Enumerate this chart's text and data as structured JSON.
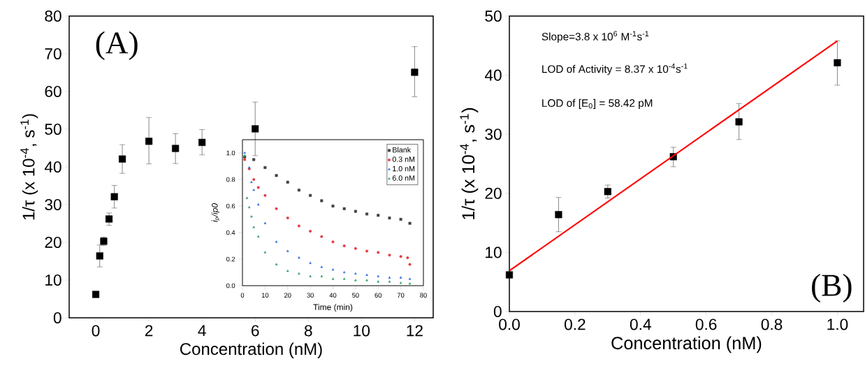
{
  "chart_data": [
    {
      "type": "scatter",
      "xlabel": "Concentration (nM)",
      "ylabel": "1/τ (x 10$^{-4}$, s$^{-1}$)",
      "xlim": [
        -1,
        12.7
      ],
      "ylim": [
        0,
        80
      ],
      "xticks": [
        0,
        2,
        4,
        6,
        8,
        10,
        12
      ],
      "yticks": [
        0,
        10,
        20,
        30,
        40,
        50,
        60,
        70,
        80
      ],
      "marker": "square",
      "annotations": [
        "(A)"
      ],
      "series": [
        {
          "color": "#000000",
          "x": [
            0,
            0.15,
            0.3,
            0.5,
            0.7,
            1,
            2,
            3,
            4,
            6,
            12
          ],
          "values": [
            6.2,
            16.4,
            20.3,
            26.2,
            32.1,
            42.1,
            46.8,
            44.9,
            46.5,
            50.1,
            65.1
          ],
          "errors": [
            null,
            [
              13.5,
              19.3
            ],
            [
              19.2,
              21.4
            ],
            [
              24.5,
              27.8
            ],
            [
              29.1,
              35.1
            ],
            [
              38.3,
              45.9
            ],
            [
              40.8,
              53.1
            ],
            [
              40.9,
              48.8
            ],
            [
              43.2,
              49.9
            ],
            [
              43.0,
              57.2
            ],
            [
              58.6,
              71.9
            ]
          ]
        }
      ]
    },
    {
      "type": "scatter",
      "xlabel": "Time (min)",
      "ylabel": "i$_{p}$/ip0",
      "xlim": [
        0,
        80
      ],
      "ylim": [
        0,
        1.1
      ],
      "xticks": [
        0,
        10,
        20,
        30,
        40,
        50,
        60,
        70,
        80
      ],
      "yticks": [
        {
          "value": 0,
          "label": "0.0"
        },
        {
          "value": 0.2,
          "label": "0.2"
        },
        {
          "value": 0.4,
          "label": "0.4"
        },
        {
          "value": 0.6,
          "label": "0.6"
        },
        {
          "value": 0.8,
          "label": "0.8"
        },
        {
          "value": 1.0,
          "label": "1.0"
        }
      ],
      "legend": "top right",
      "series": [
        {
          "name": "Blank",
          "color": "#404040",
          "marker": "square",
          "x": [
            1,
            5,
            10,
            15,
            20,
            25,
            30,
            35,
            40,
            45,
            50,
            55,
            60,
            65,
            70,
            74
          ],
          "values": [
            0.97,
            0.95,
            0.89,
            0.83,
            0.78,
            0.72,
            0.68,
            0.64,
            0.6,
            0.58,
            0.56,
            0.54,
            0.53,
            0.51,
            0.5,
            0.47
          ]
        },
        {
          "name": "0.3 nM",
          "color": "#e8383d",
          "marker": "circle",
          "x": [
            1,
            3,
            5,
            7,
            10,
            15,
            20,
            25,
            30,
            35,
            40,
            45,
            50,
            55,
            60,
            65,
            70,
            73,
            74
          ],
          "values": [
            0.95,
            0.88,
            0.8,
            0.74,
            0.68,
            0.58,
            0.51,
            0.45,
            0.41,
            0.37,
            0.33,
            0.3,
            0.28,
            0.26,
            0.25,
            0.23,
            0.22,
            0.21,
            0.16
          ]
        },
        {
          "name": "1.0 nM",
          "color": "#2a6ee0",
          "marker": "triangle",
          "x": [
            1,
            3,
            4,
            5,
            7,
            10,
            15,
            20,
            25,
            30,
            35,
            40,
            45,
            50,
            55,
            60,
            65,
            70,
            74
          ],
          "values": [
            1.0,
            0.89,
            0.78,
            0.72,
            0.61,
            0.47,
            0.33,
            0.26,
            0.21,
            0.17,
            0.14,
            0.12,
            0.1,
            0.09,
            0.08,
            0.07,
            0.06,
            0.06,
            0.05
          ]
        },
        {
          "name": "6.0 nM",
          "color": "#2ea060",
          "marker": "triangle",
          "x": [
            1,
            2,
            3,
            4,
            5,
            7,
            10,
            15,
            20,
            25,
            30,
            35,
            40,
            45,
            50,
            55,
            60,
            65,
            70,
            74
          ],
          "values": [
            0.98,
            0.66,
            0.59,
            0.52,
            0.44,
            0.37,
            0.25,
            0.16,
            0.11,
            0.09,
            0.07,
            0.07,
            0.05,
            0.05,
            0.04,
            0.04,
            0.03,
            0.03,
            0.02,
            0.015
          ]
        }
      ]
    },
    {
      "type": "scatter",
      "xlabel": "Concentration (nM)",
      "ylabel": "1/τ (x 10$^{-4}$, s$^{-1}$)",
      "xlim": [
        0,
        1.08
      ],
      "ylim": [
        0,
        50
      ],
      "xticks": [
        {
          "value": 0,
          "label": "0.0"
        },
        {
          "value": 0.2,
          "label": "0.2"
        },
        {
          "value": 0.4,
          "label": "0.4"
        },
        {
          "value": 0.6,
          "label": "0.6"
        },
        {
          "value": 0.8,
          "label": "0.8"
        },
        {
          "value": 1.0,
          "label": "1.0"
        }
      ],
      "yticks": [
        0,
        10,
        20,
        30,
        40,
        50
      ],
      "annotations": [
        "Slope=3.8 x 10$^{6}$ M$^{-1}$s$^{-1}$",
        "LOD of Activity = 8.37 x 10$^{-4}$s$^{-1}$",
        "LOD of [E$_{0}$] = 58.42 pM",
        "(B)"
      ],
      "series": [
        {
          "color": "#000000",
          "marker": "square",
          "x": [
            0,
            0.15,
            0.3,
            0.5,
            0.7,
            1.0
          ],
          "values": [
            6.2,
            16.4,
            20.3,
            26.2,
            32.1,
            42.1
          ],
          "errors": [
            null,
            [
              13.5,
              19.3
            ],
            [
              19.2,
              21.4
            ],
            [
              24.5,
              27.8
            ],
            [
              29.1,
              35.2
            ],
            [
              38.3,
              45.8
            ]
          ]
        },
        {
          "type": "line",
          "marker": "none",
          "color": "#ff0000",
          "x": [
            0,
            1.0
          ],
          "values": [
            6.9,
            45.8
          ]
        }
      ]
    }
  ]
}
